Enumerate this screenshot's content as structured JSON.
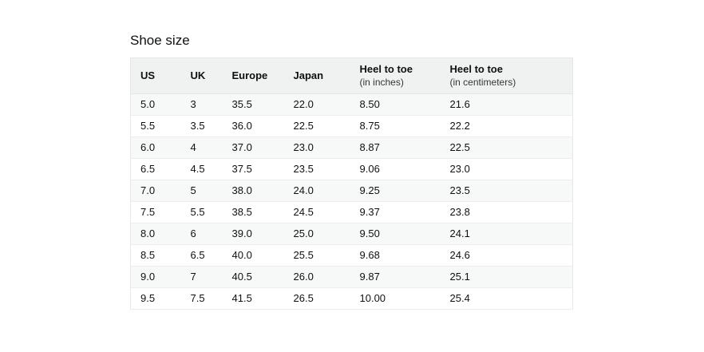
{
  "page": {
    "title": "Shoe size"
  },
  "colors": {
    "header_background": "#f0f2f2",
    "stripe_background": "#f7f8f8",
    "border": "#e7e7e7",
    "text": "#0f1111"
  },
  "table": {
    "columns": [
      {
        "label": "US",
        "sub": ""
      },
      {
        "label": "UK",
        "sub": ""
      },
      {
        "label": "Europe",
        "sub": ""
      },
      {
        "label": "Japan",
        "sub": ""
      },
      {
        "label": "Heel to toe",
        "sub": "(in inches)"
      },
      {
        "label": "Heel to toe",
        "sub": "(in centimeters)"
      }
    ],
    "rows": [
      [
        "5.0",
        "3",
        "35.5",
        "22.0",
        "8.50",
        "21.6"
      ],
      [
        "5.5",
        "3.5",
        "36.0",
        "22.5",
        "8.75",
        "22.2"
      ],
      [
        "6.0",
        "4",
        "37.0",
        "23.0",
        "8.87",
        "22.5"
      ],
      [
        "6.5",
        "4.5",
        "37.5",
        "23.5",
        "9.06",
        "23.0"
      ],
      [
        "7.0",
        "5",
        "38.0",
        "24.0",
        "9.25",
        "23.5"
      ],
      [
        "7.5",
        "5.5",
        "38.5",
        "24.5",
        "9.37",
        "23.8"
      ],
      [
        "8.0",
        "6",
        "39.0",
        "25.0",
        "9.50",
        "24.1"
      ],
      [
        "8.5",
        "6.5",
        "40.0",
        "25.5",
        "9.68",
        "24.6"
      ],
      [
        "9.0",
        "7",
        "40.5",
        "26.0",
        "9.87",
        "25.1"
      ],
      [
        "9.5",
        "7.5",
        "41.5",
        "26.5",
        "10.00",
        "25.4"
      ]
    ]
  }
}
